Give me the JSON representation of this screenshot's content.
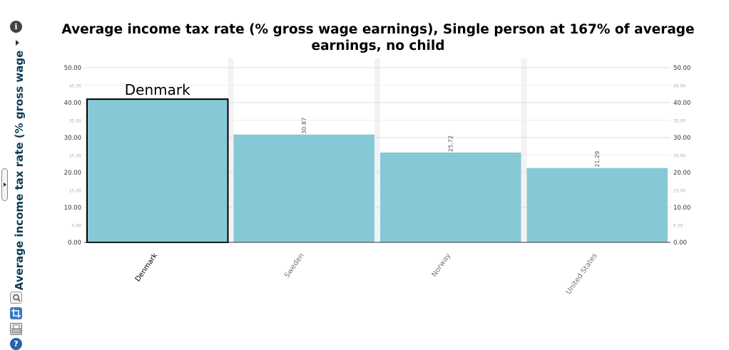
{
  "title": "Average income tax rate (% gross wage earnings), Single person at 167% of average earnings, no child",
  "toolbar": {
    "info_icon": "info-icon",
    "expand_icon": "triangle-right-icon",
    "zoom_icon": "magnifier-icon",
    "crop_icon": "crop-icon",
    "print_icon": "printer-icon",
    "help_icon": "help-icon",
    "info_glyph": "i",
    "help_glyph": "?"
  },
  "colors": {
    "bar": "#87c8d6",
    "highlight_border": "#000000",
    "column_band": "#f3f3f3",
    "axis_text": "#333333",
    "title": "#000000",
    "ylabel": "#0d3b56"
  },
  "chart_data": {
    "type": "bar",
    "title": "Average income tax rate (% gross wage earnings), Single person at 167% of average earnings, no child",
    "ylabel": "Average income tax rate (% gross wage",
    "xlabel": "",
    "categories": [
      "Denmark",
      "Sweden",
      "Norway",
      "United States"
    ],
    "values": [
      41.0,
      30.87,
      25.72,
      21.29
    ],
    "data_labels": [
      "",
      "30.87",
      "25.72",
      "21.29"
    ],
    "highlighted": "Denmark",
    "highlight_label": "Denmark",
    "ylim": [
      0,
      50
    ],
    "major_ticks": [
      "0.00",
      "10.00",
      "20.00",
      "30.00",
      "40.00",
      "50.00"
    ],
    "minor_ticks": [
      "5.00",
      "15.00",
      "25.00",
      "35.00",
      "45.00"
    ],
    "grid": true,
    "legend": "none",
    "secondary_y_axis": true
  }
}
